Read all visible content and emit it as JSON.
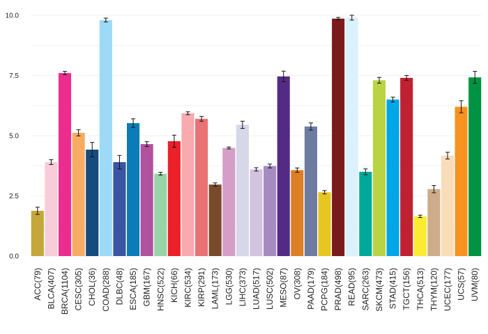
{
  "chart_data": {
    "type": "bar",
    "title": "",
    "xlabel": "",
    "ylabel": "",
    "ylim": [
      0,
      10.2
    ],
    "yticks": [
      0.0,
      2.5,
      5.0,
      7.5,
      10.0
    ],
    "ytick_labels": [
      "0.0",
      "2.5",
      "5.0",
      "7.5",
      "10.0"
    ],
    "grid": true,
    "categories": [
      "ACC(79)",
      "BLCA(407)",
      "BRCA(1104)",
      "CESC(305)",
      "CHOL(36)",
      "COAD(288)",
      "DLBC(48)",
      "ESCA(185)",
      "GBM(167)",
      "HNSC(522)",
      "KICH(66)",
      "KIRC(534)",
      "KIRP(291)",
      "LAML(173)",
      "LGG(530)",
      "LIHC(373)",
      "LUAD(517)",
      "LUSC(502)",
      "MESO(87)",
      "OV(308)",
      "PAAD(179)",
      "PCPG(184)",
      "PRAD(498)",
      "READ(95)",
      "SARC(263)",
      "SKCM(473)",
      "STAD(415)",
      "TGCT(156)",
      "THCA(513)",
      "THYM(120)",
      "UCEC(177)",
      "UCS(57)",
      "UVM(80)"
    ],
    "values": [
      1.88,
      3.9,
      7.6,
      5.12,
      4.42,
      9.8,
      3.9,
      5.52,
      4.65,
      3.42,
      4.77,
      5.93,
      5.7,
      2.97,
      4.49,
      5.45,
      3.6,
      3.74,
      7.46,
      3.57,
      5.38,
      2.65,
      9.86,
      9.9,
      3.5,
      7.3,
      6.5,
      7.4,
      1.65,
      2.78,
      4.17,
      6.2,
      7.42
    ],
    "errors": [
      0.15,
      0.1,
      0.07,
      0.13,
      0.3,
      0.08,
      0.28,
      0.18,
      0.1,
      0.06,
      0.25,
      0.06,
      0.1,
      0.07,
      0.04,
      0.15,
      0.07,
      0.08,
      0.22,
      0.09,
      0.15,
      0.07,
      0.05,
      0.1,
      0.12,
      0.12,
      0.1,
      0.1,
      0.05,
      0.15,
      0.14,
      0.25,
      0.25
    ],
    "colors": [
      "#C4A738",
      "#F8CCD8",
      "#EC2D8F",
      "#F8AB63",
      "#144C7D",
      "#9DDAF7",
      "#3A55A3",
      "#0A7DB8",
      "#B0529E",
      "#98D4A8",
      "#EC2028",
      "#F8AAAE",
      "#E97275",
      "#784A2B",
      "#D49EC8",
      "#D6D7E9",
      "#D4C3DF",
      "#A68AC2",
      "#542B84",
      "#DC7F25",
      "#6D7BA1",
      "#E8C622",
      "#7B1A1D",
      "#DBF1FB",
      "#00A89C",
      "#B9D343",
      "#00A6E5",
      "#C02131",
      "#F9EC31",
      "#CEAC8A",
      "#F9DDB9",
      "#F7931F",
      "#009344"
    ]
  }
}
